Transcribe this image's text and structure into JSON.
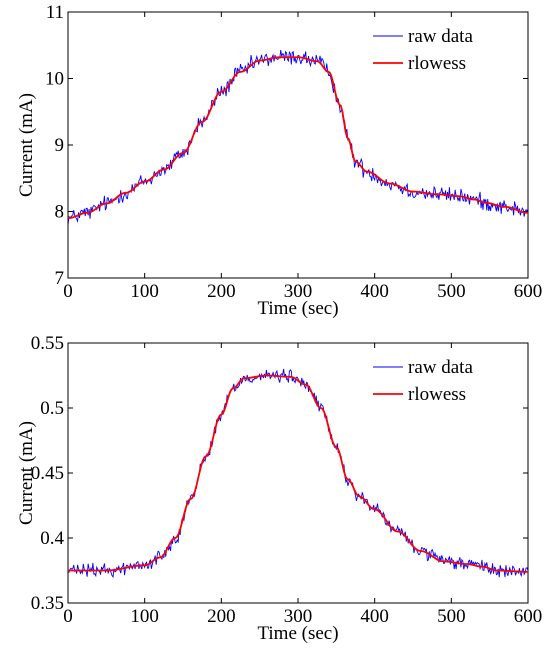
{
  "chart_data": [
    {
      "type": "line",
      "xlabel": "Time (sec)",
      "ylabel": "Current (mA)",
      "xlim": [
        0,
        600
      ],
      "ylim": [
        7,
        11
      ],
      "xticks": [
        0,
        100,
        200,
        300,
        400,
        500,
        600
      ],
      "xtick_labels": [
        "0",
        "100",
        "200",
        "300",
        "400",
        "500",
        "600"
      ],
      "yticks": [
        7,
        8,
        9,
        10,
        11
      ],
      "ytick_labels": [
        "7",
        "8",
        "9",
        "10",
        "11"
      ],
      "legend_position": "top-right",
      "grid": false,
      "noise_amplitude": 0.06,
      "series": [
        {
          "name": "raw data",
          "color": "#0000ff",
          "kind": "noisy",
          "x": [
            0,
            25,
            50,
            75,
            100,
            125,
            150,
            175,
            200,
            225,
            250,
            275,
            300,
            325,
            340,
            355,
            365,
            375,
            390,
            420,
            450,
            480,
            510,
            530,
            545,
            570,
            600
          ],
          "values": [
            7.9,
            7.98,
            8.12,
            8.28,
            8.45,
            8.63,
            8.88,
            9.35,
            9.8,
            10.1,
            10.27,
            10.32,
            10.32,
            10.26,
            10.1,
            9.6,
            9.1,
            8.75,
            8.6,
            8.42,
            8.3,
            8.26,
            8.23,
            8.18,
            8.13,
            8.07,
            7.98
          ]
        },
        {
          "name": "rlowess",
          "color": "#ff0000",
          "kind": "smooth",
          "x": [
            0,
            25,
            50,
            75,
            100,
            125,
            150,
            175,
            200,
            225,
            250,
            275,
            300,
            325,
            340,
            355,
            365,
            375,
            390,
            420,
            450,
            480,
            510,
            530,
            545,
            570,
            600
          ],
          "values": [
            7.9,
            7.98,
            8.12,
            8.28,
            8.45,
            8.63,
            8.88,
            9.35,
            9.8,
            10.1,
            10.27,
            10.32,
            10.32,
            10.26,
            10.1,
            9.6,
            9.1,
            8.75,
            8.6,
            8.42,
            8.3,
            8.26,
            8.23,
            8.18,
            8.13,
            8.07,
            7.98
          ]
        }
      ]
    },
    {
      "type": "line",
      "xlabel": "Time (sec)",
      "ylabel": "Current (mA)",
      "xlim": [
        0,
        600
      ],
      "ylim": [
        0.35,
        0.55
      ],
      "xticks": [
        0,
        100,
        200,
        300,
        400,
        500,
        600
      ],
      "xtick_labels": [
        "0",
        "100",
        "200",
        "300",
        "400",
        "500",
        "600"
      ],
      "yticks": [
        0.35,
        0.4,
        0.45,
        0.5,
        0.55
      ],
      "ytick_labels": [
        "0.35",
        "0.4",
        "0.45",
        "0.5",
        "0.55"
      ],
      "legend_position": "top-right",
      "grid": false,
      "noise_amplitude": 0.0025,
      "series": [
        {
          "name": "raw data",
          "color": "#0000ff",
          "kind": "noisy",
          "x": [
            0,
            50,
            100,
            120,
            140,
            160,
            180,
            200,
            215,
            230,
            260,
            290,
            310,
            330,
            350,
            365,
            380,
            400,
            430,
            460,
            490,
            520,
            540,
            560,
            600
          ],
          "values": [
            0.375,
            0.375,
            0.379,
            0.385,
            0.4,
            0.43,
            0.463,
            0.495,
            0.515,
            0.523,
            0.525,
            0.524,
            0.518,
            0.5,
            0.47,
            0.445,
            0.432,
            0.422,
            0.405,
            0.39,
            0.382,
            0.38,
            0.378,
            0.375,
            0.374
          ]
        },
        {
          "name": "rlowess",
          "color": "#ff0000",
          "kind": "smooth",
          "x": [
            0,
            50,
            100,
            120,
            140,
            160,
            180,
            200,
            215,
            230,
            260,
            290,
            310,
            330,
            350,
            365,
            380,
            400,
            430,
            460,
            490,
            520,
            540,
            560,
            600
          ],
          "values": [
            0.375,
            0.375,
            0.379,
            0.385,
            0.4,
            0.43,
            0.463,
            0.495,
            0.515,
            0.523,
            0.525,
            0.524,
            0.518,
            0.5,
            0.47,
            0.445,
            0.432,
            0.422,
            0.405,
            0.39,
            0.382,
            0.38,
            0.378,
            0.375,
            0.374
          ]
        }
      ]
    }
  ]
}
